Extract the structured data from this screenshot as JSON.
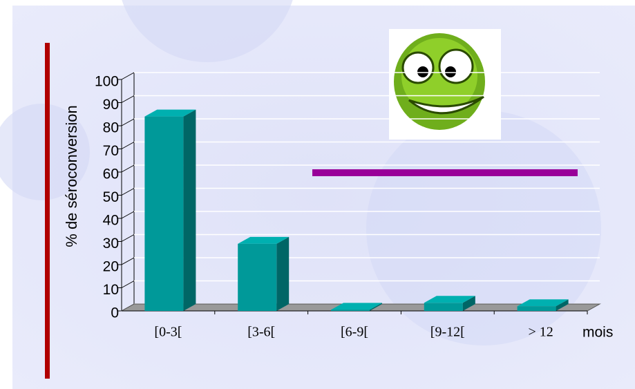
{
  "chart_data": {
    "type": "bar3d",
    "categories": [
      "[0-3[",
      "[3-6[",
      "[6-9[",
      "[9-12[",
      "> 12"
    ],
    "values": [
      84,
      29,
      0.5,
      3.5,
      2
    ],
    "color": "#009999",
    "y_label": "% de séroconversion",
    "x_label": "mois",
    "ylim": [
      0,
      100
    ],
    "yticks": [
      0,
      10,
      20,
      30,
      40,
      50,
      60,
      70,
      80,
      90,
      100
    ],
    "grid": true
  }
}
